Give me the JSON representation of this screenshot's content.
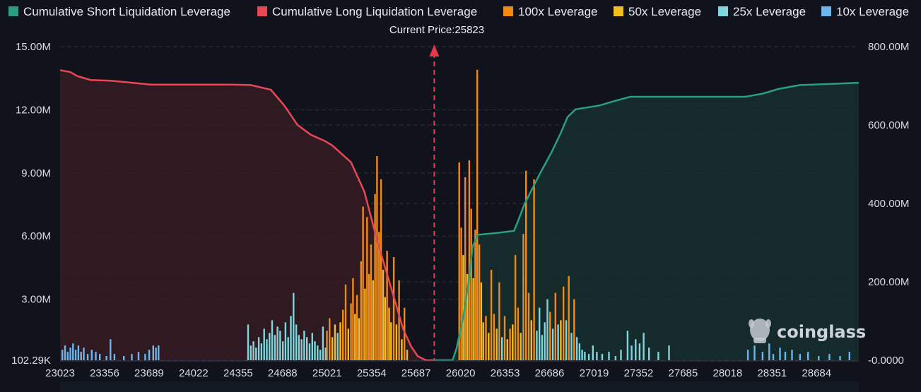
{
  "brand": {
    "name": "coinglass"
  },
  "chart_data": {
    "type": "bar",
    "current_price_label": "Current Price:25823",
    "current_price": 25823,
    "legend": [
      {
        "label": "Cumulative Short Liquidation Leverage",
        "color": "#2a9d83"
      },
      {
        "label": "Cumulative Long Liquidation Leverage",
        "color": "#e84855"
      },
      {
        "label": "100x Leverage",
        "color": "#f28a12"
      },
      {
        "label": "50x Leverage",
        "color": "#f4be1c"
      },
      {
        "label": "25x Leverage",
        "color": "#7fd6dc"
      },
      {
        "label": "10x Leverage",
        "color": "#6bb6ee"
      }
    ],
    "x_ticks": [
      "23023",
      "23356",
      "23689",
      "24022",
      "24355",
      "24688",
      "25021",
      "25354",
      "25687",
      "26020",
      "26353",
      "26686",
      "27019",
      "27352",
      "27685",
      "28018",
      "28351",
      "28684"
    ],
    "x_range": [
      23023,
      29000
    ],
    "left_axis": {
      "ticks": [
        "102.29K",
        "3.00M",
        "6.00M",
        "9.00M",
        "12.00M",
        "15.00M"
      ],
      "values": [
        0.10229,
        3,
        6,
        9,
        12,
        15
      ],
      "unit": "M",
      "range": [
        0.10229,
        15.0
      ]
    },
    "right_axis": {
      "ticks": [
        "-0.0000",
        "200.00M",
        "400.00M",
        "600.00M",
        "800.00M"
      ],
      "values": [
        0,
        200,
        400,
        600,
        800
      ],
      "unit": "M",
      "range": [
        0,
        800
      ]
    },
    "cumulative_long": {
      "name": "Cumulative Long Liquidation Leverage",
      "points": [
        [
          23023,
          740
        ],
        [
          23100,
          735
        ],
        [
          23150,
          725
        ],
        [
          23250,
          715
        ],
        [
          23400,
          713
        ],
        [
          23500,
          710
        ],
        [
          23700,
          703
        ],
        [
          24300,
          703
        ],
        [
          24450,
          702
        ],
        [
          24600,
          690
        ],
        [
          24700,
          650
        ],
        [
          24800,
          600
        ],
        [
          24900,
          575
        ],
        [
          25000,
          560
        ],
        [
          25060,
          548
        ],
        [
          25200,
          505
        ],
        [
          25300,
          430
        ],
        [
          25400,
          300
        ],
        [
          25470,
          220
        ],
        [
          25530,
          150
        ],
        [
          25590,
          80
        ],
        [
          25650,
          35
        ],
        [
          25700,
          10
        ],
        [
          25760,
          0
        ],
        [
          25823,
          0
        ]
      ]
    },
    "cumulative_short": {
      "name": "Cumulative Short Liquidation Leverage",
      "points": [
        [
          25823,
          0
        ],
        [
          25960,
          0
        ],
        [
          25990,
          30
        ],
        [
          26040,
          110
        ],
        [
          26080,
          200
        ],
        [
          26110,
          290
        ],
        [
          26150,
          320
        ],
        [
          26300,
          325
        ],
        [
          26420,
          330
        ],
        [
          26450,
          355
        ],
        [
          26500,
          400
        ],
        [
          26560,
          440
        ],
        [
          26620,
          480
        ],
        [
          26700,
          530
        ],
        [
          26770,
          580
        ],
        [
          26820,
          620
        ],
        [
          26880,
          640
        ],
        [
          27060,
          650
        ],
        [
          27160,
          660
        ],
        [
          27290,
          672
        ],
        [
          27500,
          672
        ],
        [
          28150,
          672
        ],
        [
          28280,
          680
        ],
        [
          28400,
          692
        ],
        [
          28560,
          702
        ],
        [
          28800,
          705
        ],
        [
          29000,
          708
        ]
      ]
    },
    "bars_note": "individual leverage bars per price level, values in millions (left axis)",
    "bars": [
      {
        "x": 23040,
        "v": 0.6,
        "c": "10x"
      },
      {
        "x": 23060,
        "v": 0.8,
        "c": "10x"
      },
      {
        "x": 23080,
        "v": 0.5,
        "c": "10x"
      },
      {
        "x": 23100,
        "v": 0.7,
        "c": "10x"
      },
      {
        "x": 23120,
        "v": 0.9,
        "c": "10x"
      },
      {
        "x": 23140,
        "v": 0.6,
        "c": "10x"
      },
      {
        "x": 23160,
        "v": 0.8,
        "c": "10x"
      },
      {
        "x": 23180,
        "v": 0.5,
        "c": "10x"
      },
      {
        "x": 23200,
        "v": 0.7,
        "c": "10x"
      },
      {
        "x": 23230,
        "v": 0.4,
        "c": "10x"
      },
      {
        "x": 23260,
        "v": 0.6,
        "c": "10x"
      },
      {
        "x": 23290,
        "v": 0.5,
        "c": "10x"
      },
      {
        "x": 23320,
        "v": 0.4,
        "c": "10x"
      },
      {
        "x": 23370,
        "v": 0.3,
        "c": "10x"
      },
      {
        "x": 23400,
        "v": 1.1,
        "c": "10x"
      },
      {
        "x": 23430,
        "v": 0.4,
        "c": "10x"
      },
      {
        "x": 23500,
        "v": 0.3,
        "c": "10x"
      },
      {
        "x": 23560,
        "v": 0.4,
        "c": "10x"
      },
      {
        "x": 23610,
        "v": 0.5,
        "c": "10x"
      },
      {
        "x": 23660,
        "v": 0.4,
        "c": "10x"
      },
      {
        "x": 23690,
        "v": 0.6,
        "c": "10x"
      },
      {
        "x": 23720,
        "v": 0.8,
        "c": "10x"
      },
      {
        "x": 23740,
        "v": 0.7,
        "c": "10x"
      },
      {
        "x": 23760,
        "v": 0.8,
        "c": "10x"
      },
      {
        "x": 24430,
        "v": 1.8,
        "c": "25x"
      },
      {
        "x": 24450,
        "v": 0.8,
        "c": "25x"
      },
      {
        "x": 24470,
        "v": 1.0,
        "c": "25x"
      },
      {
        "x": 24490,
        "v": 0.7,
        "c": "25x"
      },
      {
        "x": 24510,
        "v": 1.2,
        "c": "25x"
      },
      {
        "x": 24530,
        "v": 0.9,
        "c": "25x"
      },
      {
        "x": 24550,
        "v": 1.6,
        "c": "25x"
      },
      {
        "x": 24570,
        "v": 1.1,
        "c": "25x"
      },
      {
        "x": 24590,
        "v": 1.4,
        "c": "25x"
      },
      {
        "x": 24610,
        "v": 2.0,
        "c": "25x"
      },
      {
        "x": 24630,
        "v": 1.3,
        "c": "25x"
      },
      {
        "x": 24650,
        "v": 1.7,
        "c": "25x"
      },
      {
        "x": 24670,
        "v": 1.5,
        "c": "25x"
      },
      {
        "x": 24690,
        "v": 1.0,
        "c": "25x"
      },
      {
        "x": 24710,
        "v": 1.9,
        "c": "25x"
      },
      {
        "x": 24730,
        "v": 1.2,
        "c": "25x"
      },
      {
        "x": 24750,
        "v": 2.2,
        "c": "25x"
      },
      {
        "x": 24770,
        "v": 3.3,
        "c": "25x"
      },
      {
        "x": 24790,
        "v": 1.8,
        "c": "25x"
      },
      {
        "x": 24810,
        "v": 1.3,
        "c": "25x"
      },
      {
        "x": 24830,
        "v": 1.1,
        "c": "25x"
      },
      {
        "x": 24850,
        "v": 1.5,
        "c": "25x"
      },
      {
        "x": 24870,
        "v": 1.2,
        "c": "25x"
      },
      {
        "x": 24890,
        "v": 0.9,
        "c": "25x"
      },
      {
        "x": 24910,
        "v": 1.4,
        "c": "25x"
      },
      {
        "x": 24930,
        "v": 1.0,
        "c": "25x"
      },
      {
        "x": 24950,
        "v": 0.8,
        "c": "25x"
      },
      {
        "x": 24970,
        "v": 0.6,
        "c": "25x"
      },
      {
        "x": 24990,
        "v": 1.7,
        "c": "25x"
      },
      {
        "x": 25010,
        "v": 0.7,
        "c": "25x"
      },
      {
        "x": 25020,
        "v": 1.5,
        "c": "100x"
      },
      {
        "x": 25040,
        "v": 2.1,
        "c": "100x"
      },
      {
        "x": 25060,
        "v": 1.2,
        "c": "50x"
      },
      {
        "x": 25080,
        "v": 1.8,
        "c": "50x"
      },
      {
        "x": 25100,
        "v": 1.4,
        "c": "25x"
      },
      {
        "x": 25120,
        "v": 1.9,
        "c": "50x"
      },
      {
        "x": 25140,
        "v": 2.5,
        "c": "100x"
      },
      {
        "x": 25160,
        "v": 3.7,
        "c": "100x"
      },
      {
        "x": 25180,
        "v": 1.6,
        "c": "50x"
      },
      {
        "x": 25200,
        "v": 2.8,
        "c": "100x"
      },
      {
        "x": 25215,
        "v": 4.0,
        "c": "100x"
      },
      {
        "x": 25230,
        "v": 2.3,
        "c": "50x"
      },
      {
        "x": 25245,
        "v": 3.2,
        "c": "100x"
      },
      {
        "x": 25260,
        "v": 2.1,
        "c": "50x"
      },
      {
        "x": 25275,
        "v": 4.8,
        "c": "100x"
      },
      {
        "x": 25290,
        "v": 7.4,
        "c": "100x"
      },
      {
        "x": 25305,
        "v": 3.5,
        "c": "50x"
      },
      {
        "x": 25320,
        "v": 6.9,
        "c": "100x"
      },
      {
        "x": 25335,
        "v": 4.2,
        "c": "100x"
      },
      {
        "x": 25350,
        "v": 5.6,
        "c": "100x"
      },
      {
        "x": 25365,
        "v": 3.9,
        "c": "50x"
      },
      {
        "x": 25380,
        "v": 8.0,
        "c": "100x"
      },
      {
        "x": 25395,
        "v": 9.8,
        "c": "100x"
      },
      {
        "x": 25410,
        "v": 6.2,
        "c": "100x"
      },
      {
        "x": 25425,
        "v": 8.7,
        "c": "100x"
      },
      {
        "x": 25440,
        "v": 4.4,
        "c": "50x"
      },
      {
        "x": 25455,
        "v": 3.1,
        "c": "50x"
      },
      {
        "x": 25470,
        "v": 5.3,
        "c": "100x"
      },
      {
        "x": 25485,
        "v": 2.6,
        "c": "50x"
      },
      {
        "x": 25500,
        "v": 1.9,
        "c": "50x"
      },
      {
        "x": 25520,
        "v": 5.0,
        "c": "100x"
      },
      {
        "x": 25540,
        "v": 1.8,
        "c": "50x"
      },
      {
        "x": 25560,
        "v": 3.9,
        "c": "100x"
      },
      {
        "x": 25580,
        "v": 1.1,
        "c": "50x"
      },
      {
        "x": 25600,
        "v": 2.6,
        "c": "100x"
      },
      {
        "x": 25620,
        "v": 0.6,
        "c": "50x"
      },
      {
        "x": 26010,
        "v": 9.5,
        "c": "100x"
      },
      {
        "x": 26025,
        "v": 6.4,
        "c": "100x"
      },
      {
        "x": 26040,
        "v": 5.1,
        "c": "50x"
      },
      {
        "x": 26055,
        "v": 8.8,
        "c": "100x"
      },
      {
        "x": 26070,
        "v": 4.2,
        "c": "50x"
      },
      {
        "x": 26085,
        "v": 9.6,
        "c": "100x"
      },
      {
        "x": 26100,
        "v": 7.3,
        "c": "100x"
      },
      {
        "x": 26115,
        "v": 4.0,
        "c": "50x"
      },
      {
        "x": 26130,
        "v": 6.3,
        "c": "100x"
      },
      {
        "x": 26145,
        "v": 13.9,
        "c": "100x"
      },
      {
        "x": 26160,
        "v": 5.6,
        "c": "100x"
      },
      {
        "x": 26175,
        "v": 3.8,
        "c": "50x"
      },
      {
        "x": 26190,
        "v": 1.9,
        "c": "50x"
      },
      {
        "x": 26210,
        "v": 2.2,
        "c": "100x"
      },
      {
        "x": 26230,
        "v": 1.4,
        "c": "50x"
      },
      {
        "x": 26250,
        "v": 4.4,
        "c": "100x"
      },
      {
        "x": 26270,
        "v": 2.3,
        "c": "100x"
      },
      {
        "x": 26290,
        "v": 1.6,
        "c": "50x"
      },
      {
        "x": 26310,
        "v": 3.8,
        "c": "100x"
      },
      {
        "x": 26330,
        "v": 1.2,
        "c": "25x"
      },
      {
        "x": 26350,
        "v": 2.2,
        "c": "100x"
      },
      {
        "x": 26370,
        "v": 1.1,
        "c": "50x"
      },
      {
        "x": 26390,
        "v": 1.6,
        "c": "100x"
      },
      {
        "x": 26410,
        "v": 1.8,
        "c": "50x"
      },
      {
        "x": 26430,
        "v": 5.1,
        "c": "100x"
      },
      {
        "x": 26450,
        "v": 2.6,
        "c": "100x"
      },
      {
        "x": 26470,
        "v": 1.4,
        "c": "50x"
      },
      {
        "x": 26490,
        "v": 6.1,
        "c": "100x"
      },
      {
        "x": 26510,
        "v": 9.1,
        "c": "100x"
      },
      {
        "x": 26530,
        "v": 3.3,
        "c": "100x"
      },
      {
        "x": 26550,
        "v": 2.0,
        "c": "50x"
      },
      {
        "x": 26570,
        "v": 8.7,
        "c": "100x"
      },
      {
        "x": 26590,
        "v": 1.5,
        "c": "25x"
      },
      {
        "x": 26610,
        "v": 2.6,
        "c": "25x"
      },
      {
        "x": 26630,
        "v": 1.3,
        "c": "25x"
      },
      {
        "x": 26650,
        "v": 1.9,
        "c": "25x"
      },
      {
        "x": 26670,
        "v": 3.0,
        "c": "25x"
      },
      {
        "x": 26690,
        "v": 2.4,
        "c": "100x"
      },
      {
        "x": 26710,
        "v": 1.6,
        "c": "25x"
      },
      {
        "x": 26730,
        "v": 3.3,
        "c": "100x"
      },
      {
        "x": 26750,
        "v": 1.8,
        "c": "25x"
      },
      {
        "x": 26770,
        "v": 2.0,
        "c": "50x"
      },
      {
        "x": 26790,
        "v": 3.6,
        "c": "100x"
      },
      {
        "x": 26810,
        "v": 2.0,
        "c": "25x"
      },
      {
        "x": 26830,
        "v": 4.1,
        "c": "100x"
      },
      {
        "x": 26850,
        "v": 1.4,
        "c": "25x"
      },
      {
        "x": 26870,
        "v": 3.0,
        "c": "100x"
      },
      {
        "x": 26890,
        "v": 1.2,
        "c": "25x"
      },
      {
        "x": 26910,
        "v": 0.9,
        "c": "25x"
      },
      {
        "x": 26930,
        "v": 0.6,
        "c": "25x"
      },
      {
        "x": 26950,
        "v": 0.5,
        "c": "25x"
      },
      {
        "x": 26980,
        "v": 0.4,
        "c": "25x"
      },
      {
        "x": 27010,
        "v": 0.8,
        "c": "25x"
      },
      {
        "x": 27040,
        "v": 0.5,
        "c": "25x"
      },
      {
        "x": 27080,
        "v": 0.4,
        "c": "25x"
      },
      {
        "x": 27130,
        "v": 0.5,
        "c": "25x"
      },
      {
        "x": 27180,
        "v": 0.3,
        "c": "25x"
      },
      {
        "x": 27220,
        "v": 0.6,
        "c": "25x"
      },
      {
        "x": 27270,
        "v": 1.5,
        "c": "25x"
      },
      {
        "x": 27300,
        "v": 0.8,
        "c": "25x"
      },
      {
        "x": 27330,
        "v": 1.1,
        "c": "25x"
      },
      {
        "x": 27360,
        "v": 0.9,
        "c": "25x"
      },
      {
        "x": 27390,
        "v": 1.4,
        "c": "25x"
      },
      {
        "x": 27430,
        "v": 0.7,
        "c": "25x"
      },
      {
        "x": 27500,
        "v": 0.5,
        "c": "25x"
      },
      {
        "x": 27580,
        "v": 0.8,
        "c": "25x"
      },
      {
        "x": 28170,
        "v": 0.6,
        "c": "10x"
      },
      {
        "x": 28220,
        "v": 0.8,
        "c": "10x"
      },
      {
        "x": 28280,
        "v": 0.5,
        "c": "10x"
      },
      {
        "x": 28330,
        "v": 0.9,
        "c": "10x"
      },
      {
        "x": 28360,
        "v": 0.4,
        "c": "10x"
      },
      {
        "x": 28410,
        "v": 0.7,
        "c": "10x"
      },
      {
        "x": 28450,
        "v": 0.5,
        "c": "10x"
      },
      {
        "x": 28500,
        "v": 0.6,
        "c": "10x"
      },
      {
        "x": 28560,
        "v": 0.4,
        "c": "10x"
      },
      {
        "x": 28620,
        "v": 0.5,
        "c": "10x"
      },
      {
        "x": 28700,
        "v": 0.3,
        "c": "10x"
      },
      {
        "x": 28780,
        "v": 0.4,
        "c": "10x"
      },
      {
        "x": 28860,
        "v": 0.3,
        "c": "10x"
      },
      {
        "x": 28930,
        "v": 0.5,
        "c": "10x"
      }
    ]
  }
}
